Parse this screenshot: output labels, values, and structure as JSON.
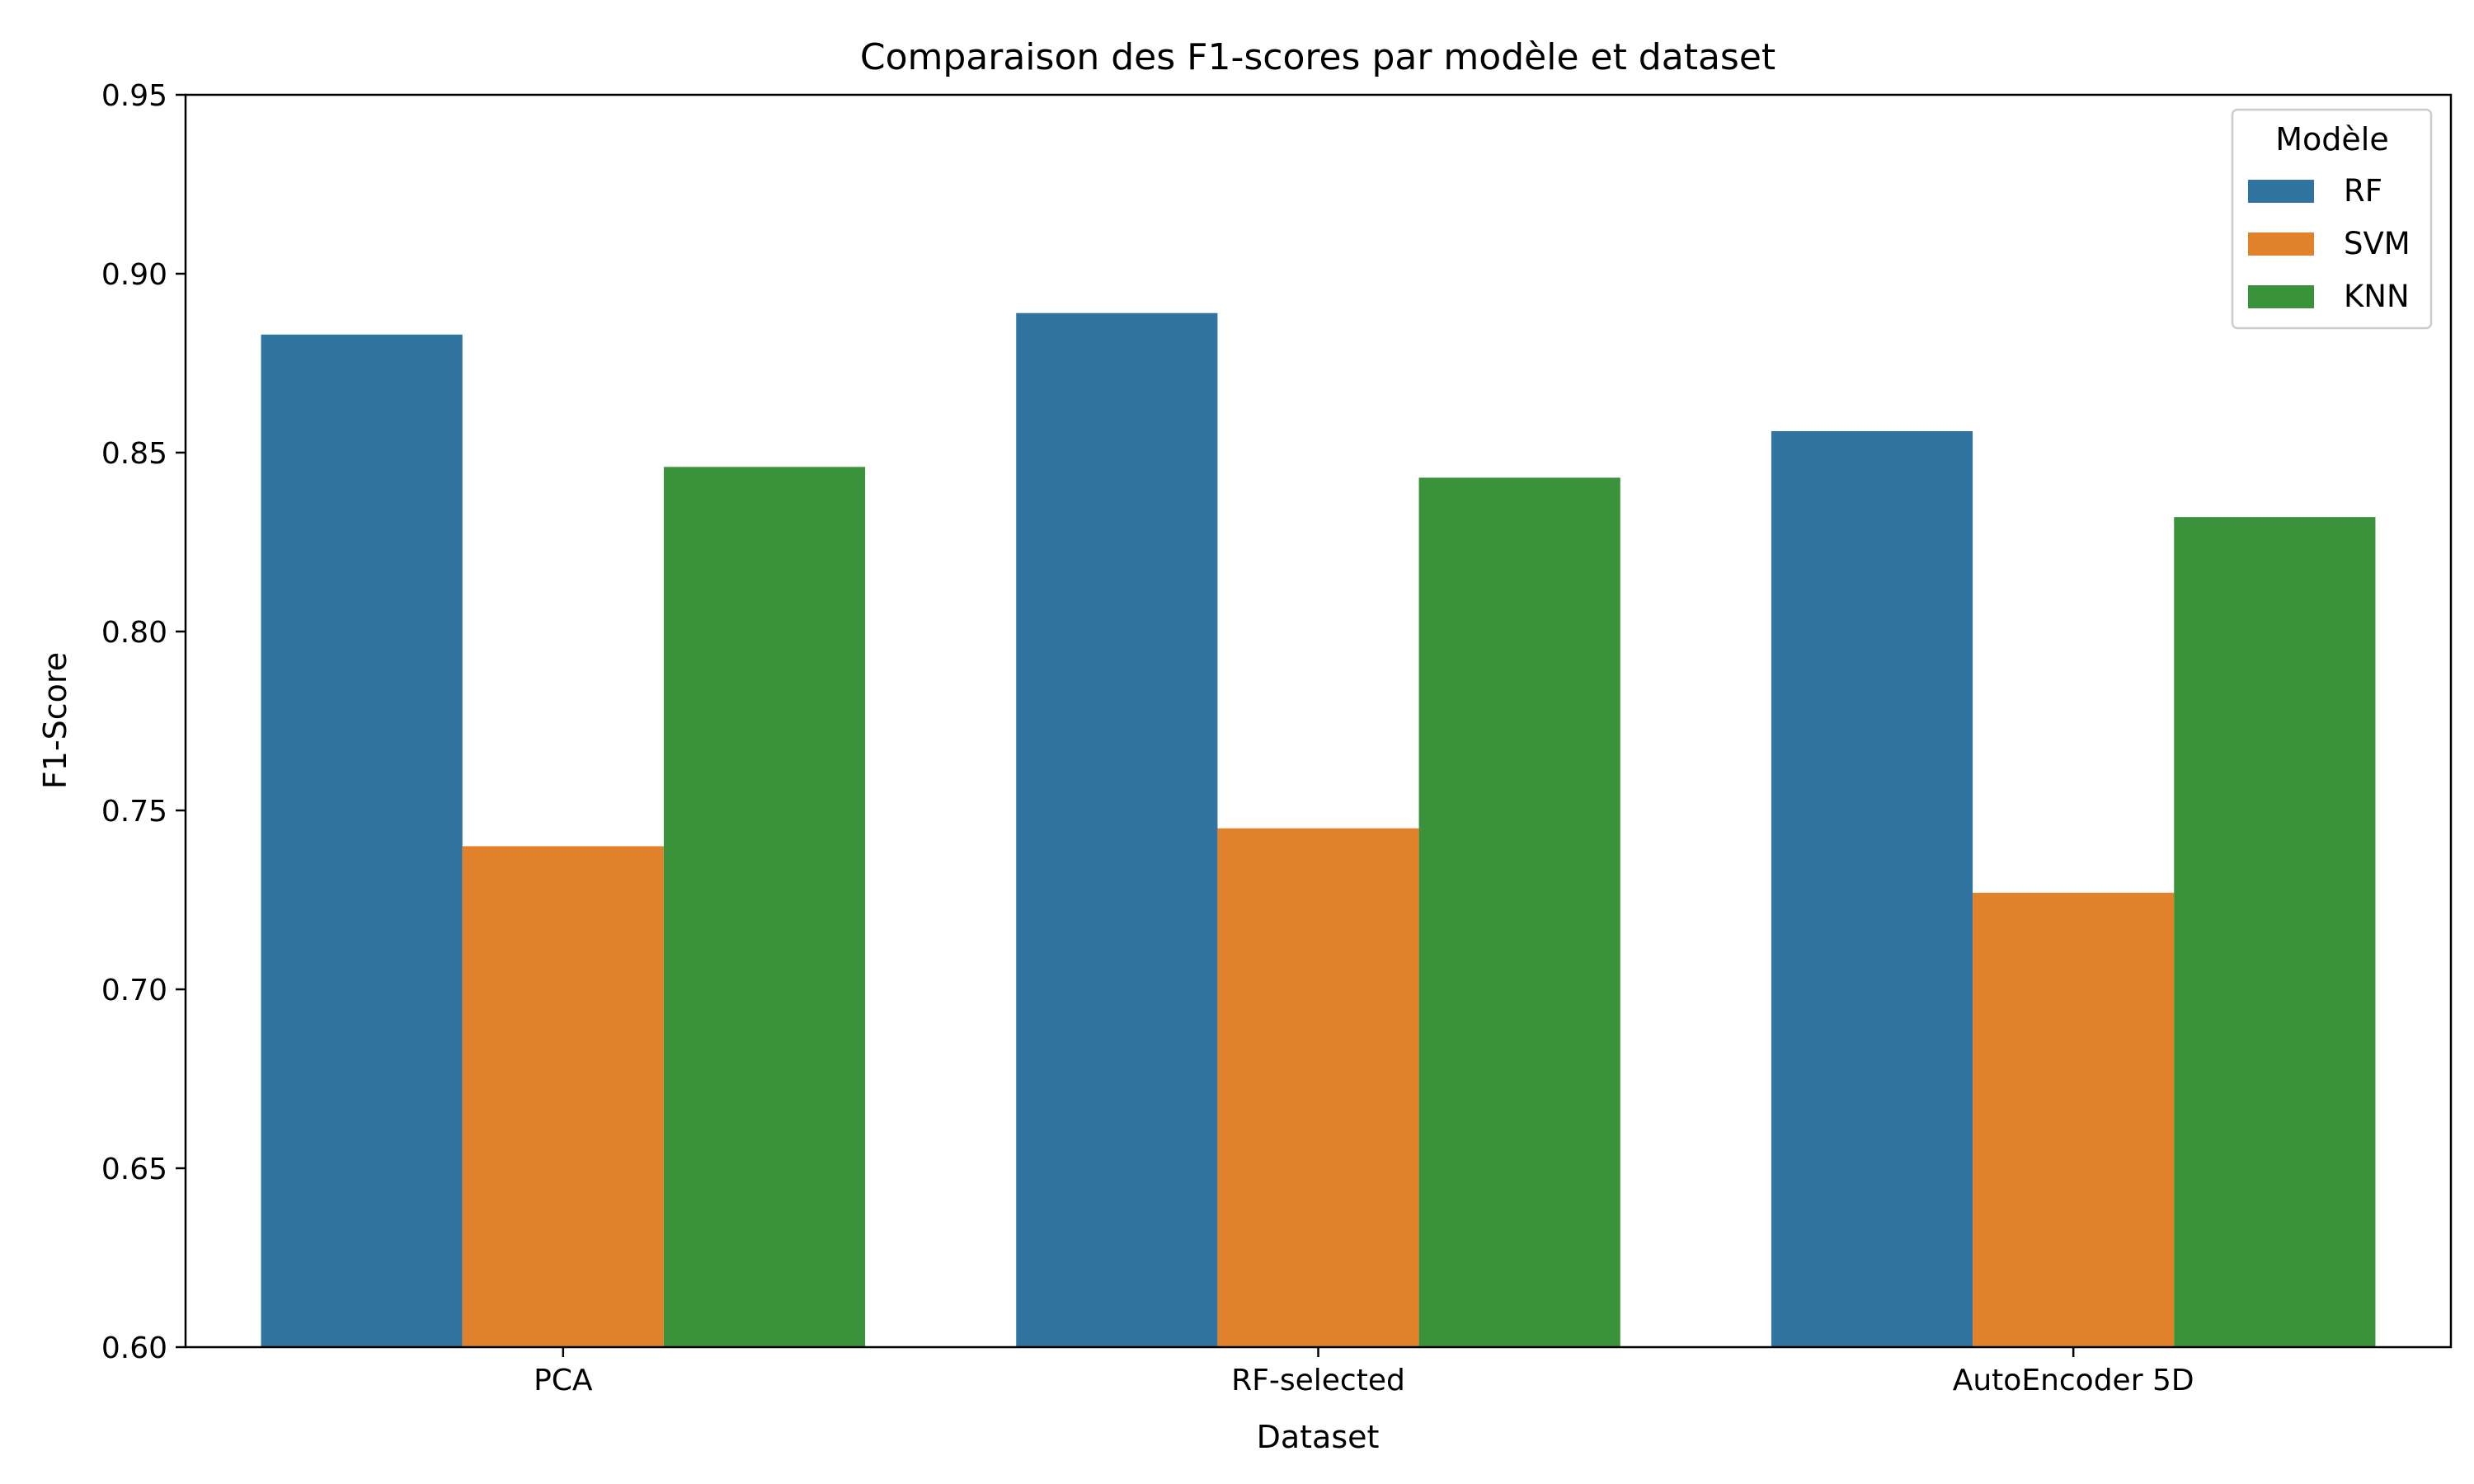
{
  "chart_data": {
    "type": "bar",
    "title": "Comparaison des F1-scores par modèle et dataset",
    "xlabel": "Dataset",
    "ylabel": "F1-Score",
    "categories": [
      "PCA",
      "RF-selected",
      "AutoEncoder 5D"
    ],
    "series": [
      {
        "name": "RF",
        "color": "#3274a1",
        "values": [
          0.883,
          0.889,
          0.856
        ]
      },
      {
        "name": "SVM",
        "color": "#e1812c",
        "values": [
          0.74,
          0.745,
          0.727
        ]
      },
      {
        "name": "KNN",
        "color": "#3a923a",
        "values": [
          0.846,
          0.843,
          0.832
        ]
      }
    ],
    "ylim": [
      0.6,
      0.95
    ],
    "yticks": [
      "0.60",
      "0.65",
      "0.70",
      "0.75",
      "0.80",
      "0.85",
      "0.90",
      "0.95"
    ],
    "legend": {
      "title": "Modèle",
      "placement": "top-right"
    },
    "grid": false
  }
}
